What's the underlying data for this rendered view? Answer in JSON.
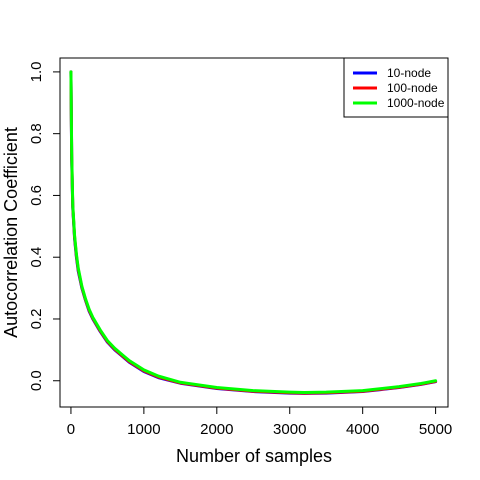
{
  "chart_data": {
    "type": "line",
    "title": "",
    "xlabel": "Number of samples",
    "ylabel": "Autocorrelation Coefficient",
    "xlim": [
      -150,
      5170
    ],
    "ylim": [
      -0.085,
      1.045
    ],
    "xticks": [
      0,
      1000,
      2000,
      3000,
      4000,
      5000
    ],
    "xtick_labels": [
      "0",
      "1000",
      "2000",
      "3000",
      "4000",
      "5000"
    ],
    "yticks": [
      0.0,
      0.2,
      0.4,
      0.6,
      0.8,
      1.0
    ],
    "ytick_labels": [
      "0.0",
      "0.2",
      "0.4",
      "0.6",
      "0.8",
      "1.0"
    ],
    "grid": false,
    "legend_position": "top-right",
    "x": [
      0,
      10,
      25,
      50,
      75,
      100,
      150,
      200,
      250,
      300,
      400,
      500,
      600,
      700,
      800,
      1000,
      1200,
      1500,
      2000,
      2500,
      3000,
      3200,
      3500,
      4000,
      4500,
      4800,
      5000
    ],
    "series": [
      {
        "name": "10-node",
        "color": "#0000ff",
        "values": [
          1.0,
          0.72,
          0.56,
          0.46,
          0.4,
          0.355,
          0.3,
          0.26,
          0.225,
          0.2,
          0.16,
          0.125,
          0.1,
          0.08,
          0.06,
          0.03,
          0.01,
          -0.008,
          -0.025,
          -0.035,
          -0.04,
          -0.041,
          -0.04,
          -0.035,
          -0.022,
          -0.012,
          -0.003
        ]
      },
      {
        "name": "100-node",
        "color": "#ff0000",
        "values": [
          1.0,
          0.73,
          0.565,
          0.465,
          0.405,
          0.36,
          0.303,
          0.262,
          0.228,
          0.202,
          0.162,
          0.127,
          0.102,
          0.082,
          0.062,
          0.032,
          0.012,
          -0.007,
          -0.024,
          -0.034,
          -0.039,
          -0.04,
          -0.039,
          -0.034,
          -0.021,
          -0.011,
          -0.002
        ]
      },
      {
        "name": "1000-node",
        "color": "#00ff00",
        "values": [
          1.0,
          0.74,
          0.57,
          0.47,
          0.41,
          0.365,
          0.306,
          0.265,
          0.231,
          0.205,
          0.165,
          0.13,
          0.105,
          0.085,
          0.065,
          0.035,
          0.015,
          -0.005,
          -0.022,
          -0.032,
          -0.037,
          -0.038,
          -0.037,
          -0.032,
          -0.019,
          -0.009,
          0.0
        ]
      }
    ]
  }
}
